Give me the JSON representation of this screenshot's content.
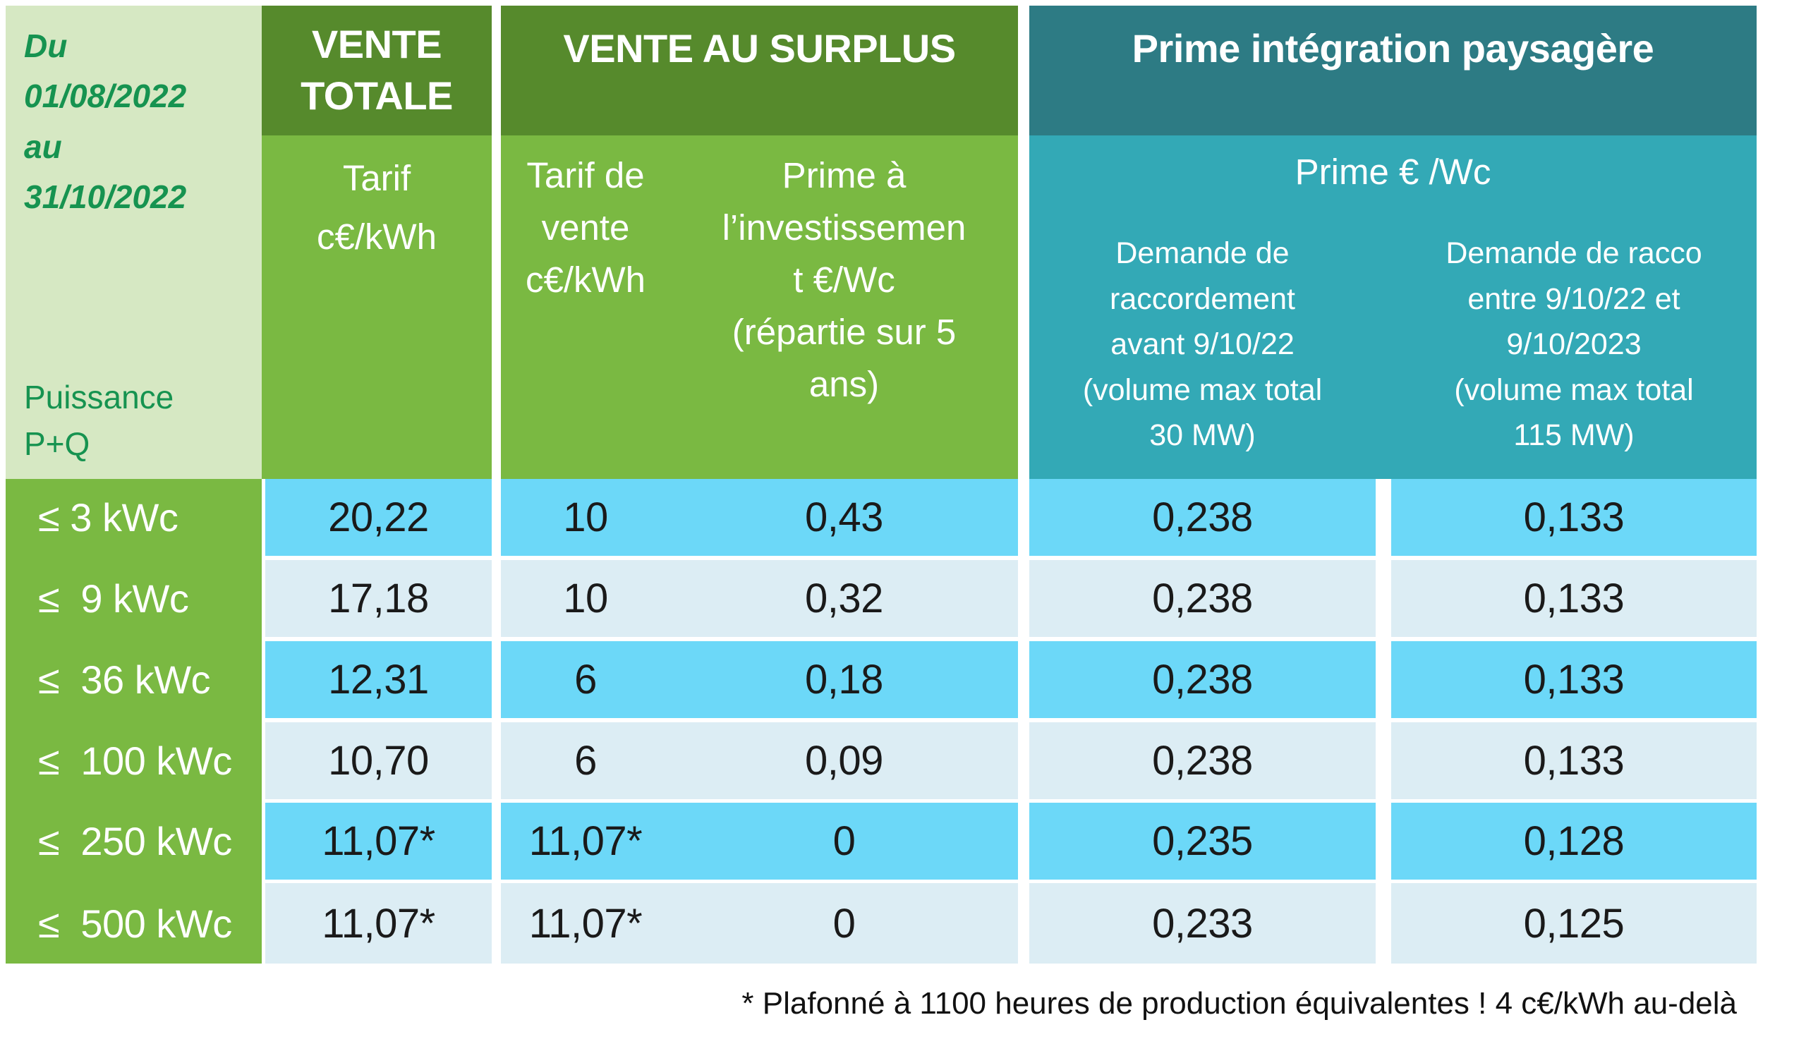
{
  "period": "Du\n01/08/2022\nau\n31/10/2022",
  "power_label": "Puissance\nP+Q",
  "columns": {
    "vente_totale": {
      "header": "VENTE\nTOTALE",
      "subheader": "Tarif\nc€/kWh"
    },
    "vente_surplus": {
      "header": "VENTE AU SURPLUS",
      "sub_tarif": "Tarif de\nvente\nc€/kWh",
      "sub_prime": "Prime à\nl’investissemen\nt €/Wc\n(répartie sur 5\nans)"
    },
    "prime_integration": {
      "header": "Prime intégration paysagère",
      "subheader": "Prime € /Wc",
      "sub_left": "Demande de\nraccordement\navant 9/10/22\n(volume max total\n30 MW)",
      "sub_right": "Demande de racco\nentre 9/10/22 et\n9/10/2023\n(volume max total\n115 MW)"
    }
  },
  "rows": [
    {
      "label": "≤ 3 kWc",
      "vente_totale": "20,22",
      "tarif_vente": "10",
      "prime_invest": "0,43",
      "prime_avant": "0,238",
      "prime_entre": "0,133"
    },
    {
      "label": "≤  9 kWc",
      "vente_totale": "17,18",
      "tarif_vente": "10",
      "prime_invest": "0,32",
      "prime_avant": "0,238",
      "prime_entre": "0,133"
    },
    {
      "label": "≤  36 kWc",
      "vente_totale": "12,31",
      "tarif_vente": "6",
      "prime_invest": "0,18",
      "prime_avant": "0,238",
      "prime_entre": "0,133"
    },
    {
      "label": "≤  100 kWc",
      "vente_totale": "10,70",
      "tarif_vente": "6",
      "prime_invest": "0,09",
      "prime_avant": "0,238",
      "prime_entre": "0,133"
    },
    {
      "label": "≤  250 kWc",
      "vente_totale": "11,07*",
      "tarif_vente": "11,07*",
      "prime_invest": "0",
      "prime_avant": "0,235",
      "prime_entre": "0,128"
    },
    {
      "label": "≤  500 kWc",
      "vente_totale": "11,07*",
      "tarif_vente": "11,07*",
      "prime_invest": "0",
      "prime_avant": "0,233",
      "prime_entre": "0,125"
    }
  ],
  "footnote": "* Plafonné à 1100 heures de production équivalentes ! 4 c€/kWh au-delà",
  "colors": {
    "green_pale": "#d6e8c3",
    "green_mid": "#7ab942",
    "green_dark": "#568a2c",
    "green_text": "#169350",
    "teal_dark": "#2d7b84",
    "teal_mid": "#33a9b6",
    "blue_sky": "#6cd8f8",
    "blue_pale": "#dcedf4",
    "value_text": "#1a1a1a"
  },
  "chart_data": {
    "type": "table",
    "period": "Du 01/08/2022 au 31/10/2022",
    "row_dimension": "Puissance P+Q",
    "columns": [
      "Puissance P+Q",
      "VENTE TOTALE — Tarif c€/kWh",
      "VENTE AU SURPLUS — Tarif de vente c€/kWh",
      "VENTE AU SURPLUS — Prime à l’investissement €/Wc (répartie sur 5 ans)",
      "Prime intégration paysagère — Prime €/Wc — Demande de raccordement avant 9/10/22 (volume max total 30 MW)",
      "Prime intégration paysagère — Prime €/Wc — Demande de racco entre 9/10/22 et 9/10/2023 (volume max total 115 MW)"
    ],
    "rows": [
      [
        "≤ 3 kWc",
        "20,22",
        "10",
        "0,43",
        "0,238",
        "0,133"
      ],
      [
        "≤ 9 kWc",
        "17,18",
        "10",
        "0,32",
        "0,238",
        "0,133"
      ],
      [
        "≤ 36 kWc",
        "12,31",
        "6",
        "0,18",
        "0,238",
        "0,133"
      ],
      [
        "≤ 100 kWc",
        "10,70",
        "6",
        "0,09",
        "0,238",
        "0,133"
      ],
      [
        "≤ 250 kWc",
        "11,07*",
        "11,07*",
        "0",
        "0,235",
        "0,128"
      ],
      [
        "≤ 500 kWc",
        "11,07*",
        "11,07*",
        "0",
        "0,233",
        "0,125"
      ]
    ],
    "footnote": "* Plafonné à 1100 heures de production équivalentes ! 4 c€/kWh au-delà"
  }
}
